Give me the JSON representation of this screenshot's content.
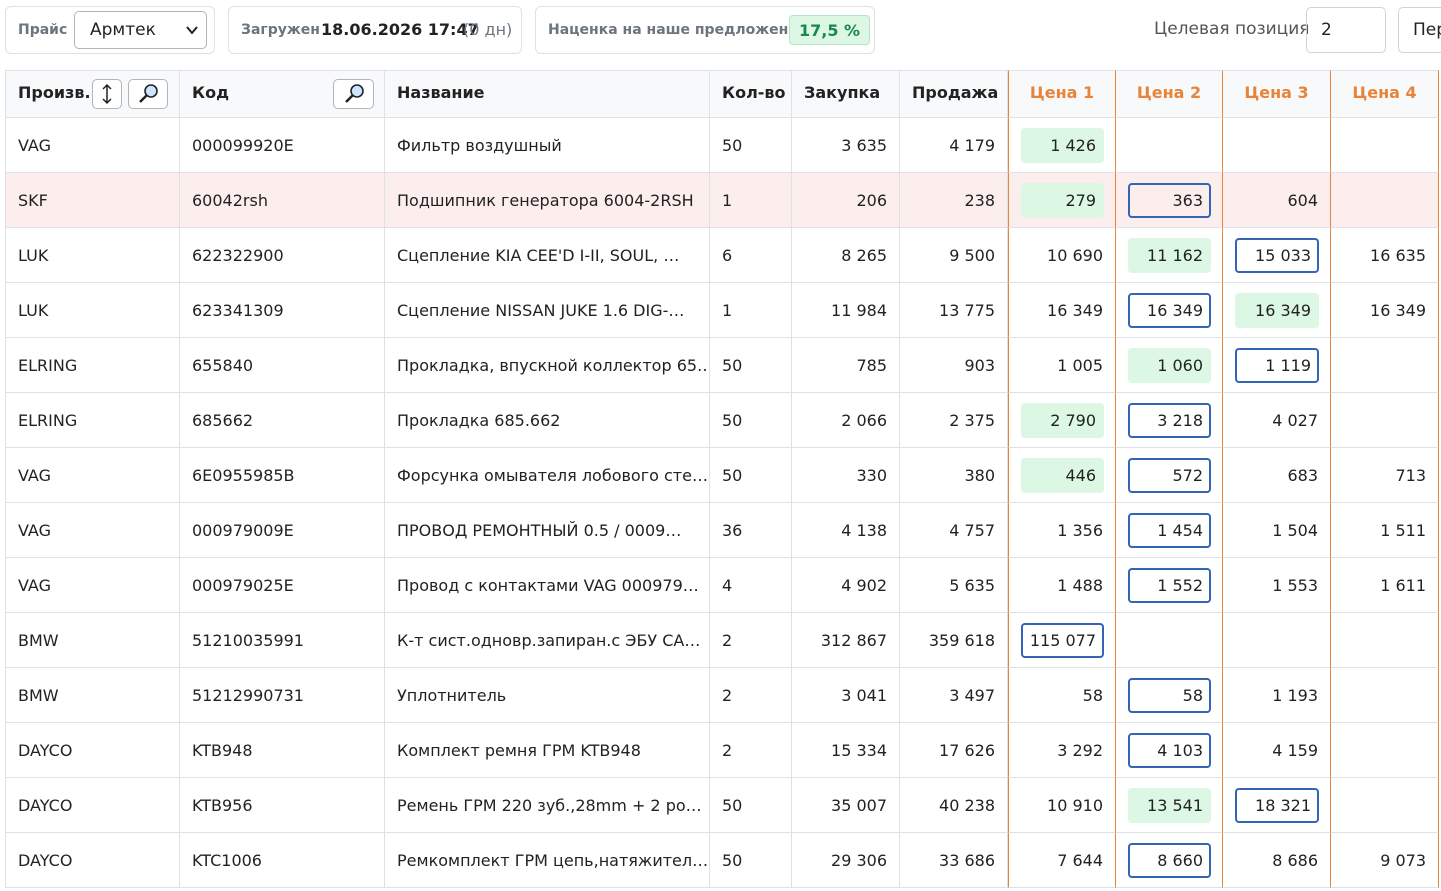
{
  "toolbar": {
    "price_label": "Прайс",
    "price_select": "Армтек",
    "loaded_label": "Загружен",
    "loaded_value": "18.06.2026 17:47",
    "loaded_age": "(0 дн)",
    "markup_label": "Наценка на наше предложение",
    "markup_value": "17,5 %",
    "target_label": "Целевая позиция",
    "target_value": "2",
    "next_button": "Пер"
  },
  "table": {
    "headers": [
      "Произв.",
      "Код",
      "Название",
      "Кол-во",
      "Закупка",
      "Продажа",
      "Цена 1",
      "Цена 2",
      "Цена 3",
      "Цена 4"
    ],
    "rows": [
      [
        "VAG",
        "000099920E",
        "Фильтр воздушный",
        "50",
        "3 635",
        "4 179",
        "1 426"
      ],
      [
        "SKF",
        "60042rsh",
        "Подшипник генератора 6004-2RSH",
        "1",
        "206",
        "238",
        "279",
        "363",
        "604"
      ],
      [
        "LUK",
        "622322900",
        "Сцепление KIA CEE'D I-II, SOUL, …",
        "6",
        "8 265",
        "9 500",
        "10 690",
        "11 162",
        "15 033",
        "16 635"
      ],
      [
        "LUK",
        "623341309",
        "Сцепление NISSAN JUKE 1.6 DIG-…",
        "1",
        "11 984",
        "13 775",
        "16 349",
        "16 349",
        "16 349",
        "16 349"
      ],
      [
        "ELRING",
        "655840",
        "Прокладка, впускной коллектор 65…",
        "50",
        "785",
        "903",
        "1 005",
        "1 060",
        "1 119"
      ],
      [
        "ELRING",
        "685662",
        "Прокладка 685.662",
        "50",
        "2 066",
        "2 375",
        "2 790",
        "3 218",
        "4 027"
      ],
      [
        "VAG",
        "6E0955985B",
        "Форсунка омывателя лобового сте…",
        "50",
        "330",
        "380",
        "446",
        "572",
        "683",
        "713"
      ],
      [
        "VAG",
        "000979009E",
        "ПРОВОД РЕМОНТНЫЙ 0.5 / 0009…",
        "36",
        "4 138",
        "4 757",
        "1 356",
        "1 454",
        "1 504",
        "1 511"
      ],
      [
        "VAG",
        "000979025E",
        "Провод с контактами VAG 000979…",
        "4",
        "4 902",
        "5 635",
        "1 488",
        "1 552",
        "1 553",
        "1 611"
      ],
      [
        "BMW",
        "51210035991",
        "К-т сист.одновр.запиран.с ЭБУ CA…",
        "2",
        "312 867",
        "359 618",
        "115 077"
      ],
      [
        "BMW",
        "51212990731",
        "Уплотнитель",
        "2",
        "3 041",
        "3 497",
        "58",
        "58",
        "1 193"
      ],
      [
        "DAYCO",
        "KTB948",
        "Комплект ремня ГРМ KTB948",
        "2",
        "15 334",
        "17 626",
        "3 292",
        "4 103",
        "4 159"
      ],
      [
        "DAYCO",
        "KTB956",
        "Ремень ГРМ 220 зуб.,28mm + 2 ро…",
        "50",
        "35 007",
        "40 238",
        "10 910",
        "13 541",
        "18 321"
      ],
      [
        "DAYCO",
        "KTC1006",
        "Ремкомплект ГРМ цепь,натяжител…",
        "50",
        "29 306",
        "33 686",
        "7 644",
        "8 660",
        "8 686",
        "9 073"
      ]
    ]
  }
}
